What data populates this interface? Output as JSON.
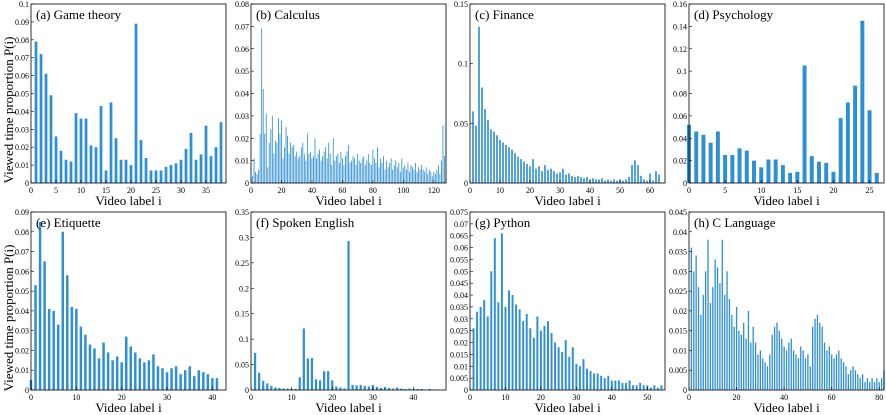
{
  "figure": {
    "ylabel": "Viewed time proportion P(i)",
    "bar_color": "#2f8fd4"
  },
  "chart_data": [
    {
      "type": "bar",
      "title": "(a) Game theory",
      "xlabel": "Video label i",
      "xlim": [
        0,
        39
      ],
      "ylim": [
        0,
        0.1
      ],
      "xticks": [
        0,
        5,
        10,
        15,
        20,
        25,
        30,
        35
      ],
      "yticks": [
        0,
        0.01,
        0.02,
        0.03,
        0.04,
        0.05,
        0.06,
        0.07,
        0.08,
        0.09,
        0.1
      ],
      "x_start": 1,
      "values": [
        0.079,
        0.072,
        0.061,
        0.049,
        0.026,
        0.018,
        0.013,
        0.012,
        0.039,
        0.036,
        0.036,
        0.021,
        0.02,
        0.043,
        0.007,
        0.045,
        0.025,
        0.013,
        0.013,
        0.01,
        0.089,
        0.024,
        0.014,
        0.007,
        0.007,
        0.007,
        0.009,
        0.01,
        0.011,
        0.013,
        0.019,
        0.028,
        0.013,
        0.016,
        0.032,
        0.015,
        0.02,
        0.034
      ]
    },
    {
      "type": "bar",
      "title": "(b) Calculus",
      "xlabel": "Video label i",
      "xlim": [
        0,
        128
      ],
      "ylim": [
        0,
        0.08
      ],
      "xticks": [
        0,
        20,
        40,
        60,
        80,
        100,
        120
      ],
      "yticks": [
        0,
        0.01,
        0.02,
        0.03,
        0.04,
        0.05,
        0.06,
        0.07,
        0.08
      ],
      "x_start": 1,
      "values": [
        0.003,
        0.011,
        0.005,
        0.004,
        0.006,
        0.022,
        0.069,
        0.042,
        0.022,
        0.031,
        0.007,
        0.018,
        0.024,
        0.03,
        0.013,
        0.019,
        0.018,
        0.029,
        0.022,
        0.028,
        0.011,
        0.016,
        0.025,
        0.021,
        0.013,
        0.018,
        0.016,
        0.017,
        0.012,
        0.014,
        0.011,
        0.012,
        0.016,
        0.018,
        0.013,
        0.01,
        0.022,
        0.013,
        0.014,
        0.011,
        0.012,
        0.02,
        0.011,
        0.013,
        0.015,
        0.01,
        0.012,
        0.014,
        0.016,
        0.011,
        0.018,
        0.013,
        0.008,
        0.02,
        0.01,
        0.012,
        0.013,
        0.009,
        0.014,
        0.011,
        0.008,
        0.012,
        0.014,
        0.017,
        0.009,
        0.01,
        0.012,
        0.011,
        0.008,
        0.013,
        0.01,
        0.009,
        0.011,
        0.012,
        0.008,
        0.01,
        0.013,
        0.009,
        0.008,
        0.015,
        0.011,
        0.009,
        0.016,
        0.007,
        0.011,
        0.009,
        0.012,
        0.006,
        0.01,
        0.007,
        0.009,
        0.011,
        0.006,
        0.008,
        0.01,
        0.007,
        0.009,
        0.005,
        0.011,
        0.007,
        0.008,
        0.006,
        0.009,
        0.005,
        0.008,
        0.007,
        0.006,
        0.009,
        0.005,
        0.007,
        0.006,
        0.008,
        0.006,
        0.005,
        0.007,
        0.004,
        0.006,
        0.005,
        0.003,
        0.005,
        0.004,
        0.006,
        0.008,
        0.004,
        0.01,
        0.026,
        0.012,
        0.027
      ]
    },
    {
      "type": "bar",
      "title": "(c) Finance",
      "xlabel": "Video label i",
      "xlim": [
        0,
        65
      ],
      "ylim": [
        0,
        0.15
      ],
      "xticks": [
        0,
        10,
        20,
        30,
        40,
        50,
        60
      ],
      "yticks": [
        0,
        0.05,
        0.1,
        0.15
      ],
      "x_start": 1,
      "values": [
        0.06,
        0.048,
        0.131,
        0.08,
        0.062,
        0.053,
        0.045,
        0.043,
        0.04,
        0.036,
        0.034,
        0.032,
        0.03,
        0.028,
        0.025,
        0.022,
        0.02,
        0.018,
        0.016,
        0.014,
        0.02,
        0.012,
        0.014,
        0.01,
        0.015,
        0.011,
        0.012,
        0.01,
        0.008,
        0.009,
        0.012,
        0.007,
        0.008,
        0.006,
        0.005,
        0.006,
        0.005,
        0.004,
        0.005,
        0.003,
        0.004,
        0.003,
        0.003,
        0.004,
        0.002,
        0.003,
        0.002,
        0.003,
        0.002,
        0.003,
        0.002,
        0.003,
        0.005,
        0.015,
        0.019,
        0.015,
        0.006,
        0.003,
        0.002,
        0.008,
        0.002,
        0.01,
        0.007
      ]
    },
    {
      "type": "bar",
      "title": "(d) Psychology",
      "xlabel": "Video label i",
      "xlim": [
        0,
        27
      ],
      "ylim": [
        0,
        0.16
      ],
      "xticks": [
        0,
        5,
        10,
        15,
        20,
        25
      ],
      "yticks": [
        0,
        0.02,
        0.04,
        0.06,
        0.08,
        0.1,
        0.12,
        0.14,
        0.16
      ],
      "x_start": 0,
      "values": [
        0.052,
        0.046,
        0.043,
        0.036,
        0.046,
        0.025,
        0.025,
        0.031,
        0.029,
        0.02,
        0.014,
        0.021,
        0.021,
        0.016,
        0.009,
        0.01,
        0.105,
        0.024,
        0.019,
        0.018,
        0.01,
        0.058,
        0.072,
        0.087,
        0.145,
        0.065,
        0.009
      ]
    },
    {
      "type": "bar",
      "title": "(e) Etiquette",
      "xlabel": "Video label i",
      "xlim": [
        0,
        43
      ],
      "ylim": [
        0,
        0.09
      ],
      "xticks": [
        0,
        10,
        20,
        30,
        40
      ],
      "yticks": [
        0,
        0.01,
        0.02,
        0.03,
        0.04,
        0.05,
        0.06,
        0.07,
        0.08,
        0.09
      ],
      "x_start": 0,
      "values": [
        0.005,
        0.053,
        0.085,
        0.065,
        0.041,
        0.04,
        0.033,
        0.08,
        0.058,
        0.042,
        0.041,
        0.032,
        0.028,
        0.023,
        0.021,
        0.016,
        0.024,
        0.019,
        0.015,
        0.017,
        0.014,
        0.027,
        0.022,
        0.019,
        0.016,
        0.014,
        0.015,
        0.018,
        0.012,
        0.011,
        0.009,
        0.011,
        0.012,
        0.008,
        0.01,
        0.012,
        0.007,
        0.01,
        0.009,
        0.008,
        0.006,
        0.006
      ]
    },
    {
      "type": "bar",
      "title": "(f) Spoken English",
      "xlabel": "Video label i",
      "xlim": [
        0,
        48
      ],
      "ylim": [
        0,
        0.35
      ],
      "xticks": [
        0,
        10,
        20,
        30,
        40
      ],
      "yticks": [
        0,
        0.05,
        0.1,
        0.15,
        0.2,
        0.25,
        0.3,
        0.35
      ],
      "x_start": 1,
      "values": [
        0.073,
        0.034,
        0.018,
        0.013,
        0.008,
        0.005,
        0.004,
        0.003,
        0.003,
        0.002,
        0.002,
        0.025,
        0.121,
        0.062,
        0.063,
        0.021,
        0.019,
        0.037,
        0.037,
        0.019,
        0.007,
        0.005,
        0.003,
        0.293,
        0.01,
        0.009,
        0.01,
        0.008,
        0.007,
        0.01,
        0.006,
        0.004,
        0.006,
        0.004,
        0.003,
        0.005,
        0.003,
        0.002,
        0.003,
        0.002,
        0.002,
        0.002,
        0.001,
        0.002,
        0.001,
        0.001
      ]
    },
    {
      "type": "bar",
      "title": "(g) Python",
      "xlabel": "Video label i",
      "xlim": [
        0,
        55
      ],
      "ylim": [
        0,
        0.075
      ],
      "xticks": [
        0,
        10,
        20,
        30,
        40,
        50
      ],
      "yticks": [
        0,
        0.005,
        0.01,
        0.015,
        0.02,
        0.025,
        0.03,
        0.035,
        0.04,
        0.045,
        0.05,
        0.055,
        0.06,
        0.065,
        0.07,
        0.075
      ],
      "x_start": 1,
      "values": [
        0.026,
        0.033,
        0.035,
        0.038,
        0.031,
        0.05,
        0.064,
        0.037,
        0.066,
        0.035,
        0.042,
        0.04,
        0.036,
        0.034,
        0.029,
        0.032,
        0.026,
        0.022,
        0.031,
        0.025,
        0.027,
        0.029,
        0.024,
        0.02,
        0.018,
        0.016,
        0.021,
        0.014,
        0.018,
        0.011,
        0.01,
        0.013,
        0.009,
        0.008,
        0.007,
        0.007,
        0.006,
        0.005,
        0.006,
        0.004,
        0.004,
        0.004,
        0.003,
        0.003,
        0.004,
        0.002,
        0.002,
        0.003,
        0.002,
        0.002,
        0.001,
        0.002,
        0.001,
        0.002
      ]
    },
    {
      "type": "bar",
      "title": "(h) C Language",
      "xlabel": "Video label i",
      "xlim": [
        0,
        82
      ],
      "ylim": [
        0,
        0.045
      ],
      "xticks": [
        0,
        20,
        40,
        60,
        80
      ],
      "yticks": [
        0,
        0.005,
        0.01,
        0.015,
        0.02,
        0.025,
        0.03,
        0.035,
        0.04,
        0.045
      ],
      "x_start": 1,
      "values": [
        0.036,
        0.03,
        0.034,
        0.026,
        0.019,
        0.024,
        0.03,
        0.038,
        0.022,
        0.026,
        0.033,
        0.031,
        0.027,
        0.038,
        0.024,
        0.03,
        0.023,
        0.019,
        0.016,
        0.021,
        0.015,
        0.014,
        0.017,
        0.013,
        0.02,
        0.012,
        0.016,
        0.012,
        0.009,
        0.01,
        0.008,
        0.007,
        0.006,
        0.009,
        0.014,
        0.016,
        0.017,
        0.015,
        0.013,
        0.011,
        0.01,
        0.012,
        0.013,
        0.01,
        0.009,
        0.008,
        0.011,
        0.01,
        0.008,
        0.009,
        0.006,
        0.016,
        0.018,
        0.019,
        0.017,
        0.016,
        0.012,
        0.01,
        0.011,
        0.009,
        0.008,
        0.009,
        0.01,
        0.008,
        0.007,
        0.006,
        0.004,
        0.005,
        0.006,
        0.005,
        0.004,
        0.003,
        0.004,
        0.002,
        0.003,
        0.002,
        0.003,
        0.002,
        0.003,
        0.002,
        0.003,
        0.005
      ]
    }
  ]
}
